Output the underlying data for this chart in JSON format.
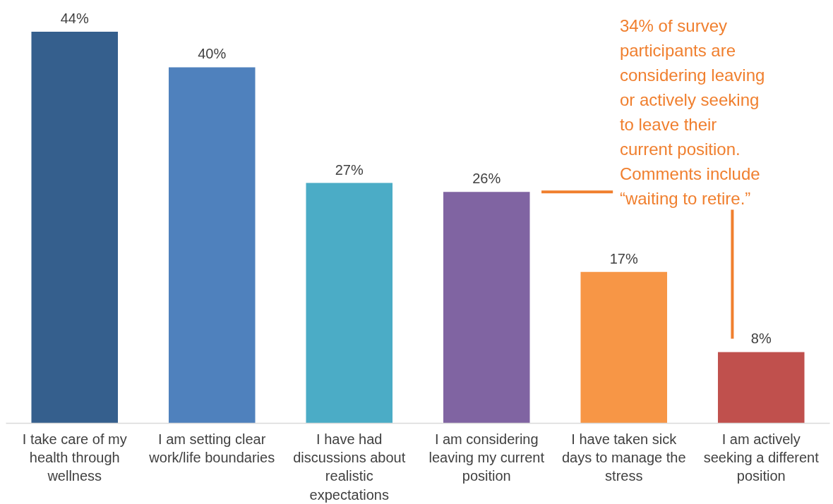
{
  "chart_data": {
    "type": "bar",
    "categories": [
      "I take care of my health through wellness",
      "I am setting clear work/life boundaries",
      "I have had discussions about realistic expectations",
      "I am considering leaving my current position",
      "I have taken sick days to manage the stress",
      "I am actively seeking a different position"
    ],
    "values": [
      44,
      40,
      27,
      26,
      17,
      8
    ],
    "colors": [
      "#355f8d",
      "#4f81bd",
      "#4bacc6",
      "#8064a2",
      "#f79646",
      "#c0504d"
    ],
    "value_labels": [
      "44%",
      "40%",
      "27%",
      "26%",
      "17%",
      "8%"
    ],
    "grid": false,
    "annotations": [
      "34% of survey participants are considering leaving or actively seeking to leave their current position. Comments include “waiting to retire.”"
    ]
  }
}
